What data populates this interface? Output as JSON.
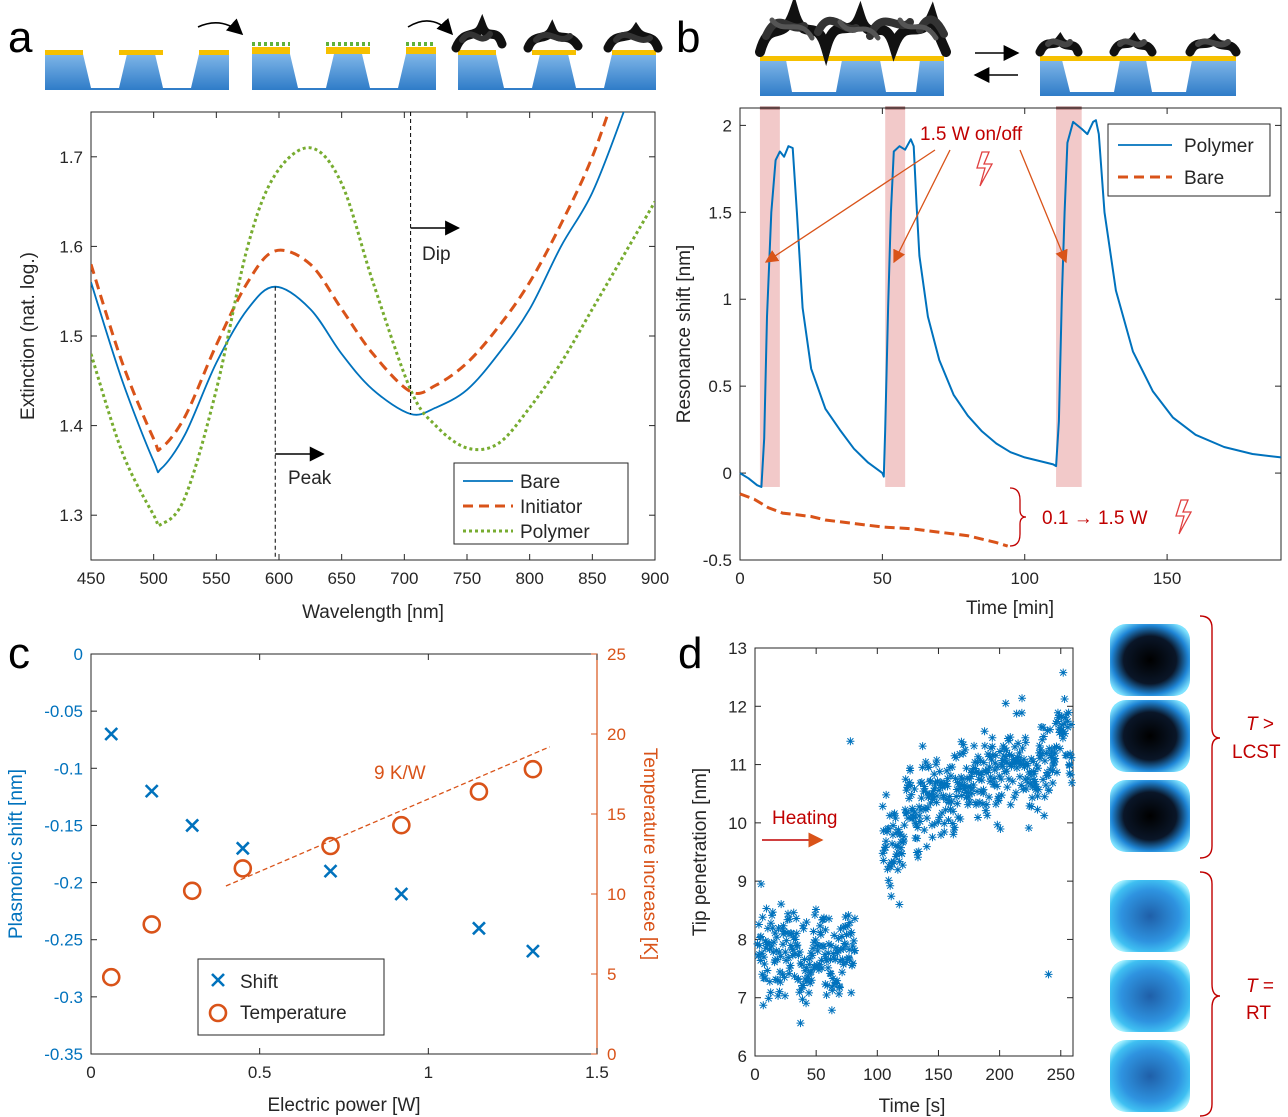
{
  "panel_labels": [
    "a",
    "b",
    "c",
    "d"
  ],
  "colors": {
    "blue": "#0072BD",
    "orange": "#D95319",
    "green": "#77AC30",
    "red": "#C00000",
    "band": "#F0C0C0"
  },
  "chart_data": [
    {
      "panel": "a",
      "type": "line",
      "xlabel": "Wavelength [nm]",
      "ylabel": "Extinction (nat. log.)",
      "xlim": [
        450,
        900
      ],
      "ylim": [
        1.25,
        1.75
      ],
      "xticks": [
        450,
        500,
        550,
        600,
        650,
        700,
        750,
        800,
        850,
        900
      ],
      "yticks": [
        1.3,
        1.4,
        1.5,
        1.6,
        1.7
      ],
      "grid": false,
      "legend_position": "bottom-right",
      "x": [
        450,
        475,
        500,
        506,
        525,
        550,
        575,
        597,
        625,
        650,
        675,
        705,
        725,
        750,
        775,
        800,
        825,
        850,
        875,
        900
      ],
      "series": [
        {
          "name": "Bare",
          "style": "solid",
          "values": [
            1.56,
            1.45,
            1.36,
            1.352,
            1.39,
            1.47,
            1.53,
            1.555,
            1.53,
            1.48,
            1.44,
            1.413,
            1.42,
            1.44,
            1.48,
            1.53,
            1.6,
            1.66,
            1.75,
            1.85
          ]
        },
        {
          "name": "Initiator",
          "style": "dashed",
          "values": [
            1.58,
            1.47,
            1.385,
            1.375,
            1.41,
            1.49,
            1.56,
            1.595,
            1.58,
            1.53,
            1.48,
            1.438,
            1.445,
            1.47,
            1.51,
            1.56,
            1.625,
            1.7,
            1.8,
            1.9
          ]
        },
        {
          "name": "Polymer",
          "style": "dotted",
          "values": [
            1.48,
            1.37,
            1.3,
            1.29,
            1.32,
            1.44,
            1.6,
            1.68,
            1.71,
            1.67,
            1.56,
            1.44,
            1.4,
            1.375,
            1.38,
            1.42,
            1.47,
            1.53,
            1.59,
            1.65
          ]
        }
      ],
      "annotations": {
        "peak_label": "Peak",
        "dip_label": "Dip",
        "peak_x": 597,
        "dip_x": 705
      }
    },
    {
      "panel": "b",
      "type": "line",
      "xlabel": "Time [min]",
      "ylabel": "Resonance shift [nm]",
      "xlim": [
        0,
        190
      ],
      "ylim": [
        -0.5,
        2.1
      ],
      "xticks": [
        0,
        50,
        100,
        150
      ],
      "yticks": [
        -0.5,
        0,
        0.5,
        1,
        1.5,
        2
      ],
      "grid": false,
      "legend_position": "top-right",
      "heating_intervals": [
        [
          7,
          14
        ],
        [
          51,
          58
        ],
        [
          111,
          120
        ]
      ],
      "series": [
        {
          "name": "Polymer",
          "style": "solid",
          "x": [
            0,
            3,
            6,
            7.5,
            8.5,
            9.5,
            11,
            12.5,
            14,
            15.5,
            17,
            18.5,
            20,
            22,
            25,
            30,
            35,
            40,
            45,
            50,
            50.5,
            51,
            52,
            53,
            54,
            56,
            58,
            60,
            61,
            62,
            63,
            66,
            70,
            75,
            80,
            85,
            90,
            95,
            100,
            105,
            110,
            111,
            112,
            113,
            114,
            115,
            117,
            120,
            122,
            124,
            125,
            126,
            128,
            132,
            138,
            145,
            152,
            160,
            170,
            180,
            190
          ],
          "values": [
            0.0,
            -0.03,
            -0.07,
            -0.08,
            0.2,
            0.9,
            1.5,
            1.8,
            1.85,
            1.82,
            1.88,
            1.87,
            1.5,
            0.95,
            0.6,
            0.37,
            0.25,
            0.14,
            0.06,
            0.0,
            -0.02,
            0.25,
            0.95,
            1.5,
            1.85,
            1.88,
            1.86,
            1.92,
            1.88,
            1.55,
            1.25,
            0.9,
            0.65,
            0.45,
            0.33,
            0.24,
            0.17,
            0.12,
            0.09,
            0.07,
            0.05,
            0.04,
            0.3,
            1.0,
            1.5,
            1.9,
            2.02,
            1.98,
            1.95,
            2.02,
            2.03,
            1.95,
            1.5,
            1.05,
            0.7,
            0.47,
            0.32,
            0.22,
            0.15,
            0.11,
            0.09
          ]
        },
        {
          "name": "Bare",
          "style": "dashed",
          "x": [
            0,
            5,
            10,
            15,
            20,
            25,
            30,
            40,
            50,
            60,
            70,
            80,
            90,
            94
          ],
          "values": [
            -0.12,
            -0.15,
            -0.2,
            -0.23,
            -0.24,
            -0.25,
            -0.27,
            -0.29,
            -0.31,
            -0.32,
            -0.34,
            -0.36,
            -0.4,
            -0.42
          ]
        }
      ],
      "annotations": {
        "on_off": "1.5 W on/off",
        "power_ramp": "0.1 → 1.5 W"
      }
    },
    {
      "panel": "c",
      "type": "scatter",
      "xlabel": "Electric power [W]",
      "ylabel": "Plasmonic shift [nm]",
      "y2label": "Temperature increase [K]",
      "xlim": [
        0,
        1.5
      ],
      "ylim": [
        -0.35,
        0
      ],
      "y2lim": [
        0,
        25
      ],
      "xticks": [
        0,
        0.5,
        1,
        1.5
      ],
      "xtick_labels": [
        "0",
        "0.5",
        "1",
        "1.5"
      ],
      "yticks": [
        0,
        -0.05,
        -0.1,
        -0.15,
        -0.2,
        -0.25,
        -0.3,
        -0.35
      ],
      "ytick_labels": [
        "0",
        "-0.05",
        "-0.1",
        "-0.15",
        "-0.2",
        "-0.25",
        "-0.3",
        "-0.35"
      ],
      "y2ticks": [
        0,
        5,
        10,
        15,
        20,
        25
      ],
      "grid": false,
      "legend_position": "bottom-center",
      "series": [
        {
          "name": "Shift",
          "axis": "left",
          "marker": "x",
          "x": [
            0.06,
            0.18,
            0.3,
            0.45,
            0.71,
            0.92,
            1.15,
            1.31
          ],
          "values": [
            -0.07,
            -0.12,
            -0.15,
            -0.17,
            -0.19,
            -0.21,
            -0.24,
            -0.26
          ]
        },
        {
          "name": "Temperature",
          "axis": "right",
          "marker": "o",
          "x": [
            0.06,
            0.18,
            0.3,
            0.45,
            0.71,
            0.92,
            1.15,
            1.31
          ],
          "values": [
            4.8,
            8.1,
            10.2,
            11.6,
            13.0,
            14.3,
            16.4,
            17.8
          ]
        }
      ],
      "fit": {
        "label": "9 K/W",
        "x": [
          0.4,
          1.36
        ],
        "values": [
          10.5,
          19.2
        ]
      }
    },
    {
      "panel": "d",
      "type": "scatter",
      "xlabel": "Time [s]",
      "ylabel": "Tip penetration [nm]",
      "xlim": [
        0,
        260
      ],
      "ylim": [
        6,
        13
      ],
      "xticks": [
        0,
        50,
        100,
        150,
        200,
        250
      ],
      "yticks": [
        6,
        7,
        8,
        9,
        10,
        11,
        12,
        13
      ],
      "grid": false,
      "marker": "*",
      "segments": [
        {
          "x_range": [
            2,
            82
          ],
          "mean": 7.7,
          "spread": 0.55
        },
        {
          "x_range": [
            104,
            150
          ],
          "mean": 10.1,
          "spread": 0.55
        },
        {
          "x_range": [
            150,
            262
          ],
          "mean": 10.9,
          "spread": 0.6
        }
      ],
      "outliers": {
        "x": [
          78,
          118,
          142,
          205,
          240,
          5
        ],
        "values": [
          11.4,
          8.6,
          10.95,
          12.05,
          7.4,
          8.95
        ]
      },
      "annotations": {
        "heating": "Heating"
      }
    }
  ],
  "side_labels": {
    "upper": {
      "t": "T",
      "rest": " >",
      "line2": "LCST"
    },
    "lower": {
      "t": "T",
      "rest": " =",
      "line2": "RT"
    }
  }
}
